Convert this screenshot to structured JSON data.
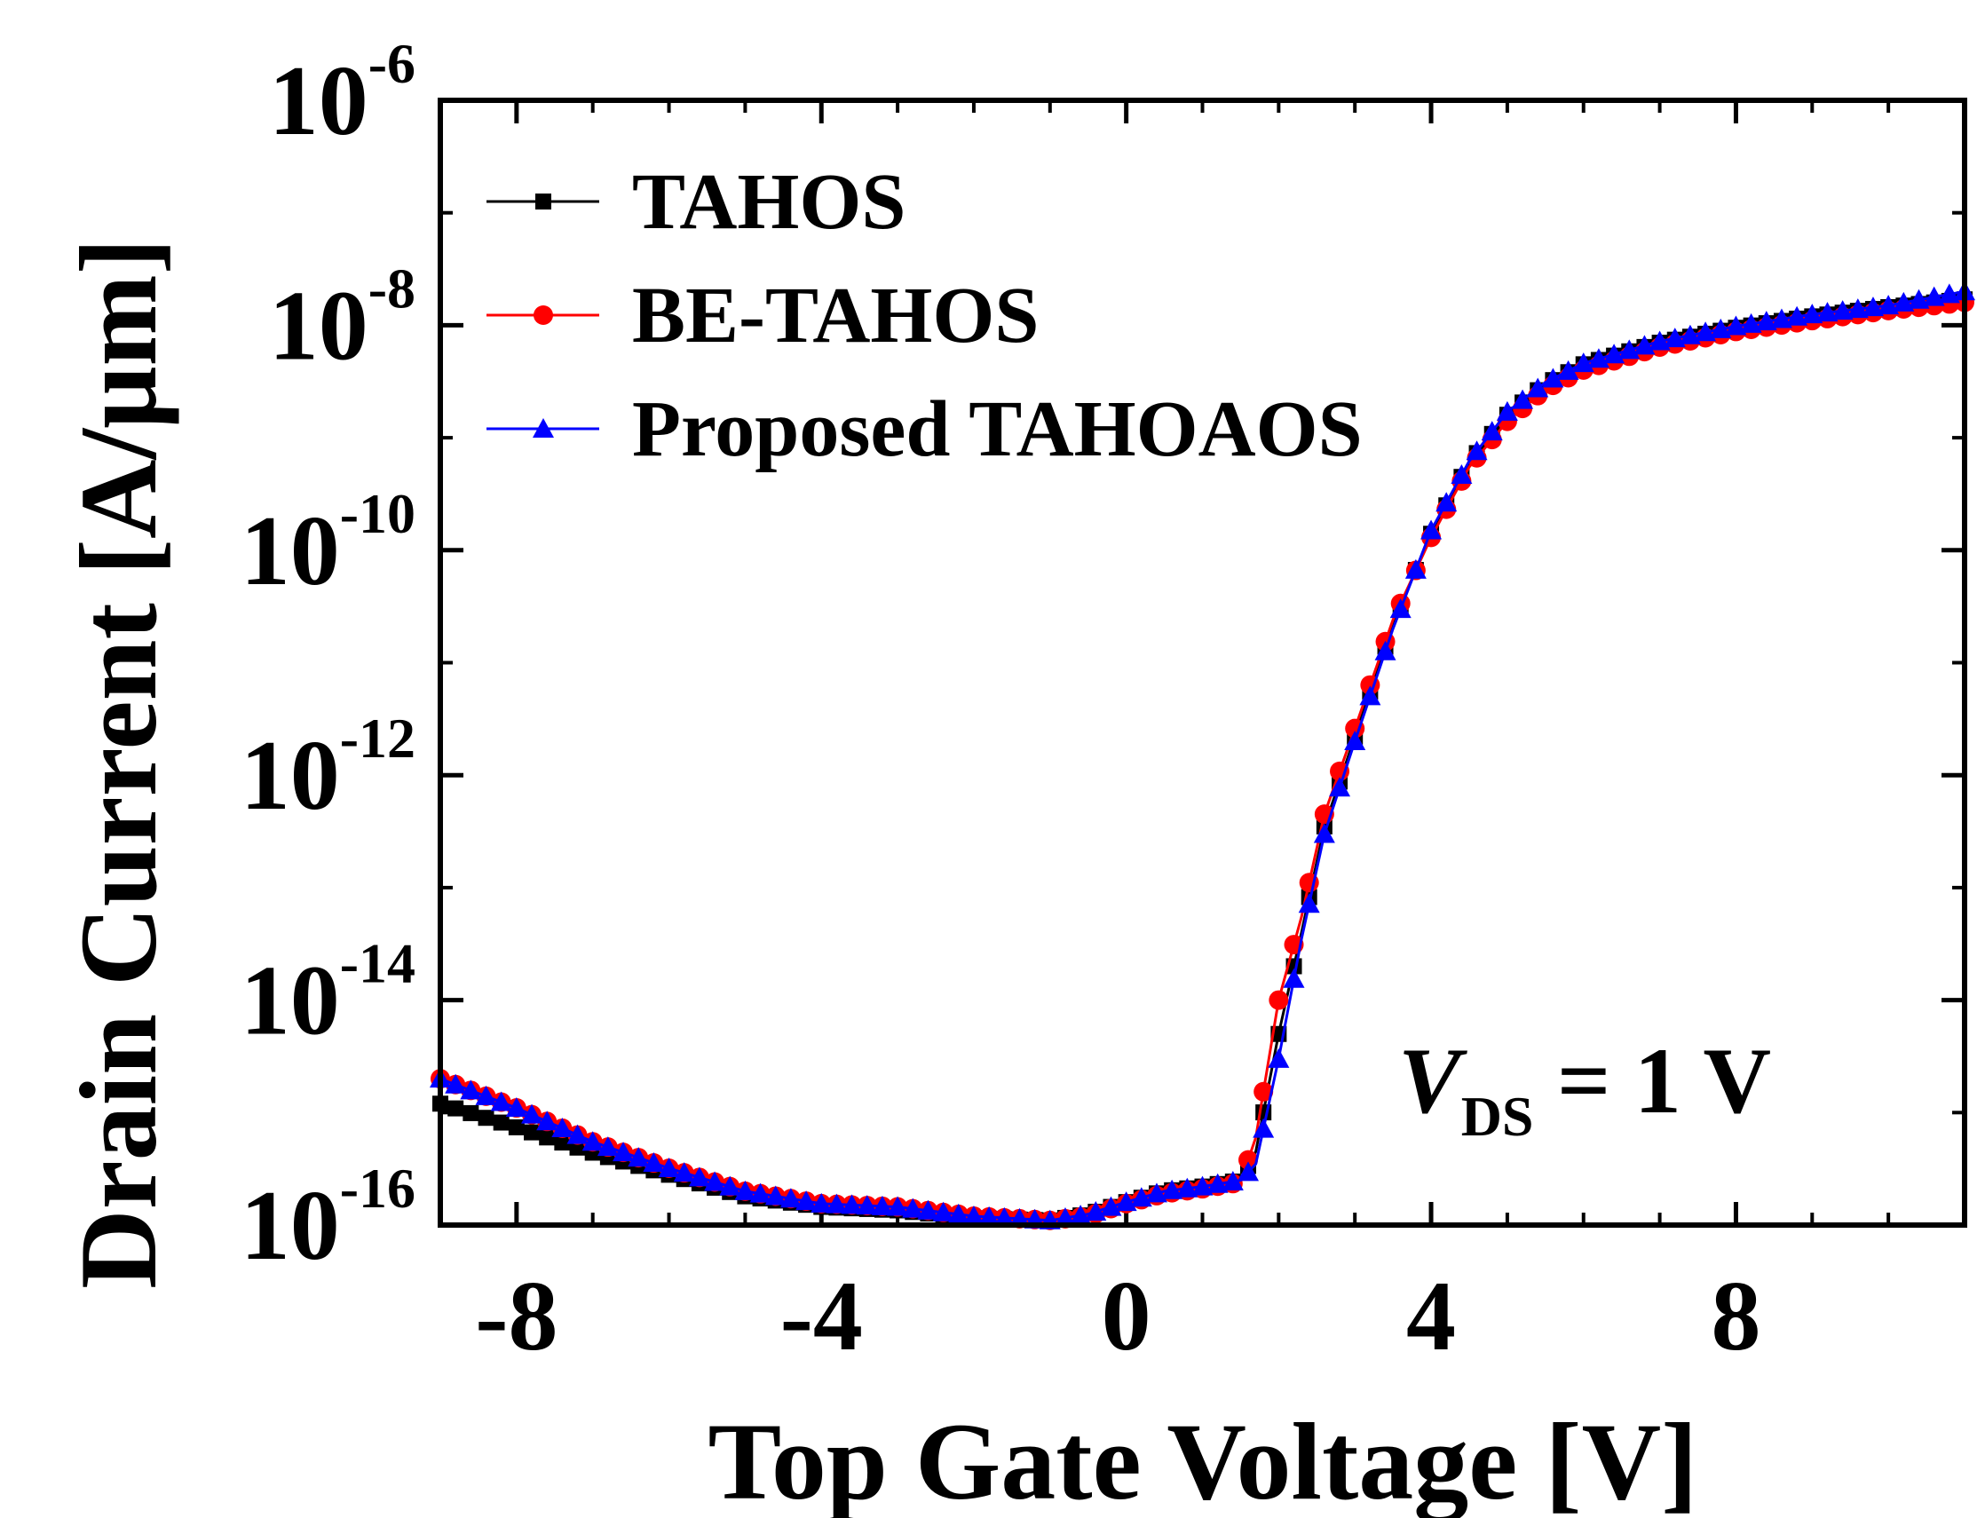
{
  "chart_data": {
    "type": "line",
    "title": "",
    "xlabel": "Top Gate Voltage [V]",
    "ylabel": "Drain Current [A/μm]",
    "xlim": [
      -9,
      11
    ],
    "ylim": [
      1e-16,
      1e-06
    ],
    "yscale": "log",
    "x_ticks": [
      -8,
      -4,
      0,
      4,
      8
    ],
    "x_tick_labels": [
      "-8",
      "-4",
      "0",
      "4",
      "8"
    ],
    "y_ticks": [
      {
        "exp": "-6",
        "base": "10",
        "value": 1e-06
      },
      {
        "exp": "-8",
        "base": "10",
        "value": 1e-08
      },
      {
        "exp": "-10",
        "base": "10",
        "value": 1e-10
      },
      {
        "exp": "-12",
        "base": "10",
        "value": 1e-12
      },
      {
        "exp": "-14",
        "base": "10",
        "value": 1e-14
      },
      {
        "exp": "-16",
        "base": "10",
        "value": 1e-16
      }
    ],
    "annotation": {
      "symbol": "V",
      "subscript": "DS",
      "rest": " = 1 V"
    },
    "legend_position": "top-left",
    "series": [
      {
        "name": "TAHOS",
        "color": "#000000",
        "marker": "square",
        "x": [
          -9,
          -8,
          -7,
          -6,
          -5,
          -4,
          -3,
          -2,
          -1,
          -0.5,
          0,
          0.5,
          1,
          1.5,
          1.7,
          2.0,
          2.3,
          2.6,
          3.0,
          3.5,
          4.0,
          4.5,
          5.0,
          5.5,
          6.0,
          7.0,
          8.0,
          9.0,
          10.0,
          11.0
        ],
        "y": [
          1.2e-15,
          7.4e-16,
          4.4e-16,
          2.8e-16,
          1.8e-16,
          1.45e-16,
          1.35e-16,
          1.15e-16,
          1.1e-16,
          1.25e-16,
          1.6e-16,
          2e-16,
          2.2e-16,
          2.5e-16,
          4.5e-16,
          5e-15,
          4e-14,
          3.5e-13,
          2.2e-12,
          2.2e-11,
          1.4e-10,
          6e-10,
          1.6e-09,
          3e-09,
          4.5e-09,
          7e-09,
          9.5e-09,
          1.2e-08,
          1.45e-08,
          1.7e-08
        ]
      },
      {
        "name": "BE-TAHOS",
        "color": "#ff0000",
        "marker": "circle",
        "x": [
          -9,
          -8,
          -7,
          -6,
          -5,
          -4,
          -3,
          -2,
          -1,
          -0.5,
          0,
          0.5,
          1,
          1.5,
          1.7,
          2.0,
          2.3,
          2.6,
          3.0,
          3.5,
          4.0,
          4.5,
          5.0,
          5.5,
          6.0,
          7.0,
          8.0,
          9.0,
          10.0,
          11.0
        ],
        "y": [
          2e-15,
          1.1e-15,
          5.5e-16,
          3.2e-16,
          2e-16,
          1.55e-16,
          1.45e-16,
          1.2e-16,
          1.1e-16,
          1.2e-16,
          1.55e-16,
          1.9e-16,
          2.1e-16,
          2.4e-16,
          6e-16,
          1e-14,
          5.5e-14,
          4.5e-13,
          2.6e-12,
          2.4e-11,
          1.3e-10,
          5.5e-10,
          1.4e-09,
          2.7e-09,
          4e-09,
          6.4e-09,
          8.8e-09,
          1.1e-08,
          1.35e-08,
          1.6e-08
        ]
      },
      {
        "name": "Proposed TAHOAOS",
        "color": "#0000ff",
        "marker": "triangle",
        "x": [
          -9,
          -8,
          -7,
          -6,
          -5,
          -4,
          -3,
          -2,
          -1,
          -0.5,
          0,
          0.5,
          1,
          1.5,
          1.7,
          2.0,
          2.3,
          2.6,
          3.0,
          3.5,
          4.0,
          4.5,
          5.0,
          5.5,
          6.0,
          7.0,
          8.0,
          9.0,
          10.0,
          11.0
        ],
        "y": [
          2e-15,
          1.1e-15,
          5.5e-16,
          3.2e-16,
          2e-16,
          1.55e-16,
          1.45e-16,
          1.2e-16,
          1.1e-16,
          1.25e-16,
          1.6e-16,
          2e-16,
          2.2e-16,
          2.5e-16,
          3.5e-16,
          3e-15,
          3.5e-14,
          3e-13,
          2e-12,
          2e-11,
          1.5e-10,
          6.2e-10,
          1.7e-09,
          3.1e-09,
          4.6e-09,
          7.2e-09,
          9.8e-09,
          1.25e-08,
          1.5e-08,
          2e-08
        ]
      }
    ]
  }
}
